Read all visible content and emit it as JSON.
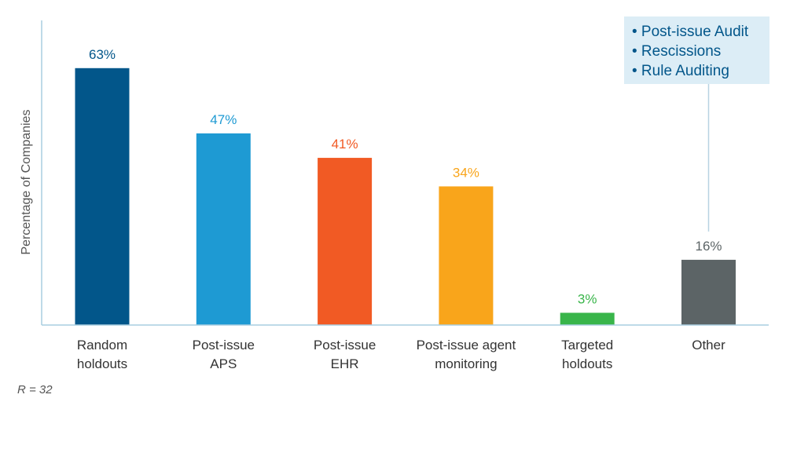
{
  "chart_data": {
    "type": "bar",
    "ylabel": "Percentage of Companies",
    "ylim": [
      0,
      70
    ],
    "categories": [
      [
        "Random",
        "holdouts"
      ],
      [
        "Post-issue",
        "APS"
      ],
      [
        "Post-issue",
        "EHR"
      ],
      [
        "Post-issue agent",
        "monitoring"
      ],
      [
        "Targeted",
        "holdouts"
      ],
      [
        "Other"
      ]
    ],
    "values": [
      63,
      47,
      41,
      34,
      3,
      16
    ],
    "value_labels": [
      "63%",
      "47%",
      "41%",
      "34%",
      "3%",
      "16%"
    ],
    "colors": [
      "#02568a",
      "#1e9ad3",
      "#f15a24",
      "#f9a51b",
      "#39b54a",
      "#5c6466"
    ],
    "label_colors": [
      "#02568a",
      "#1e9ad3",
      "#f15a24",
      "#f9a51b",
      "#39b54a",
      "#5c6466"
    ],
    "callout": {
      "items": [
        "• Post-issue Audit",
        "• Rescissions",
        "• Rule Auditing"
      ],
      "attached_to": "Other",
      "background": "#dcedf6",
      "text_color": "#02568a",
      "connector_color": "#b8d3e2"
    },
    "axis_color": "#a9cde0",
    "category_label_color": "#333333",
    "ylabel_color": "#555555",
    "grid": false,
    "legend": "none"
  },
  "note": "R = 32"
}
